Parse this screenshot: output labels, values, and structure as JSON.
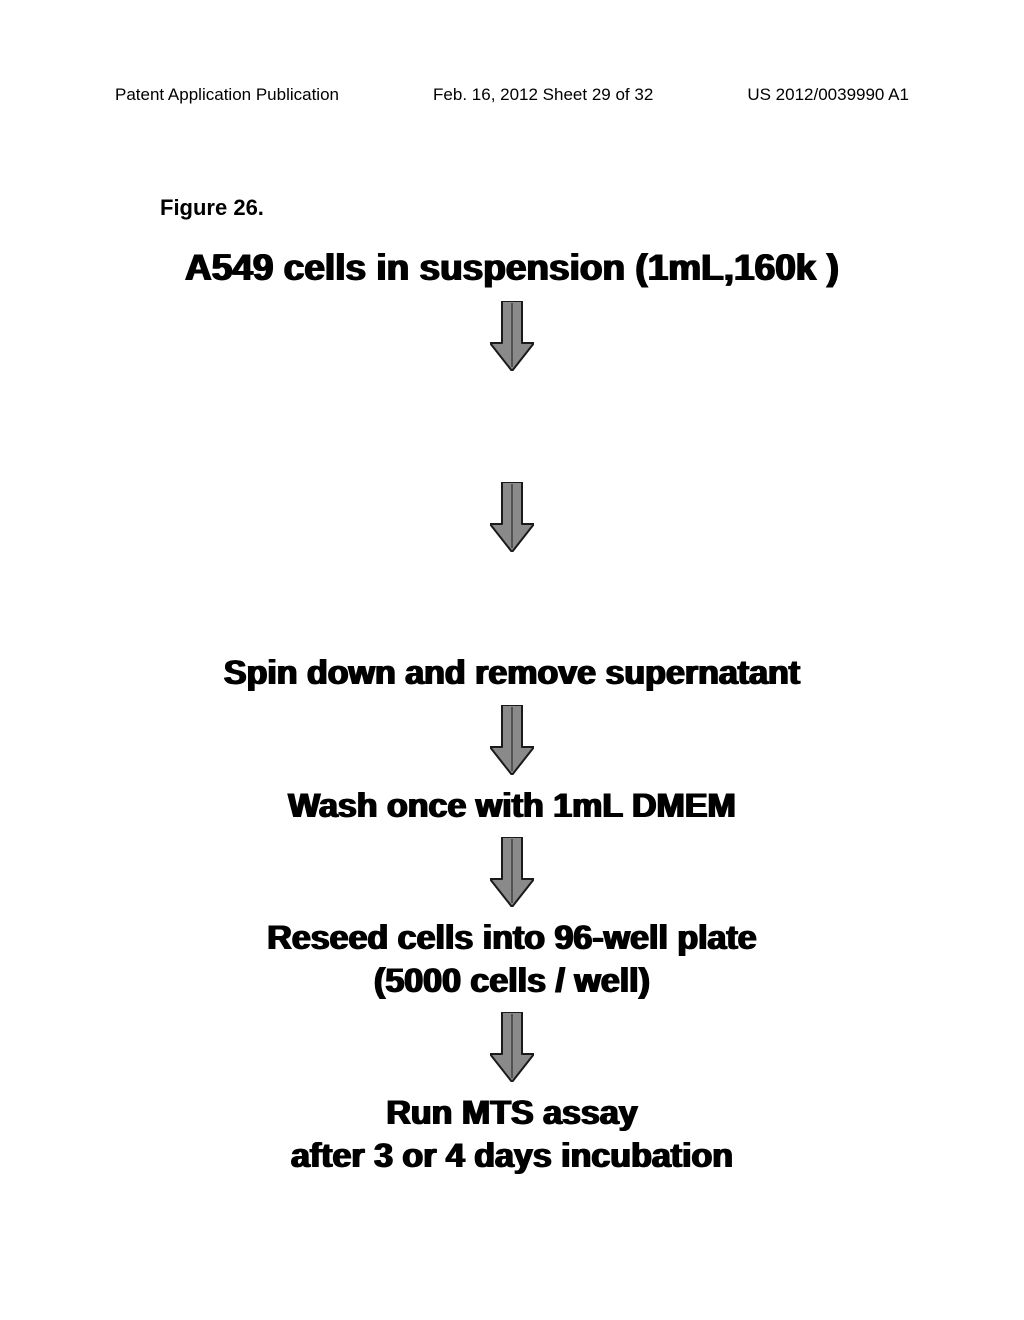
{
  "header": {
    "left": "Patent Application Publication",
    "center": "Feb. 16, 2012  Sheet 29 of 32",
    "right": "US 2012/0039990 A1"
  },
  "figure_label": "Figure 26.",
  "flowchart": {
    "type": "flowchart",
    "background_color": "#ffffff",
    "text_color": "#000000",
    "arrow_fill": "#8a8a8a",
    "arrow_stroke": "#1a1a1a",
    "steps": [
      {
        "text": "A549 cells in suspension (1mL,160k )",
        "fontsize": 37
      },
      {
        "text": "",
        "fontsize": 34
      },
      {
        "text": "Spin down and remove supernatant",
        "fontsize": 34
      },
      {
        "text": "Wash once with 1mL DMEM",
        "fontsize": 34
      },
      {
        "text": "Reseed cells into 96-well plate\n(5000 cells / well)",
        "fontsize": 34
      },
      {
        "text": "Run MTS assay\nafter 3 or 4 days incubation",
        "fontsize": 34
      }
    ],
    "arrow": {
      "width": 44,
      "height": 70,
      "shaft_width": 20,
      "head_width": 44,
      "head_height": 28,
      "stroke_width": 2
    },
    "gaps_after_step": [
      10,
      100,
      10,
      10,
      10
    ]
  }
}
